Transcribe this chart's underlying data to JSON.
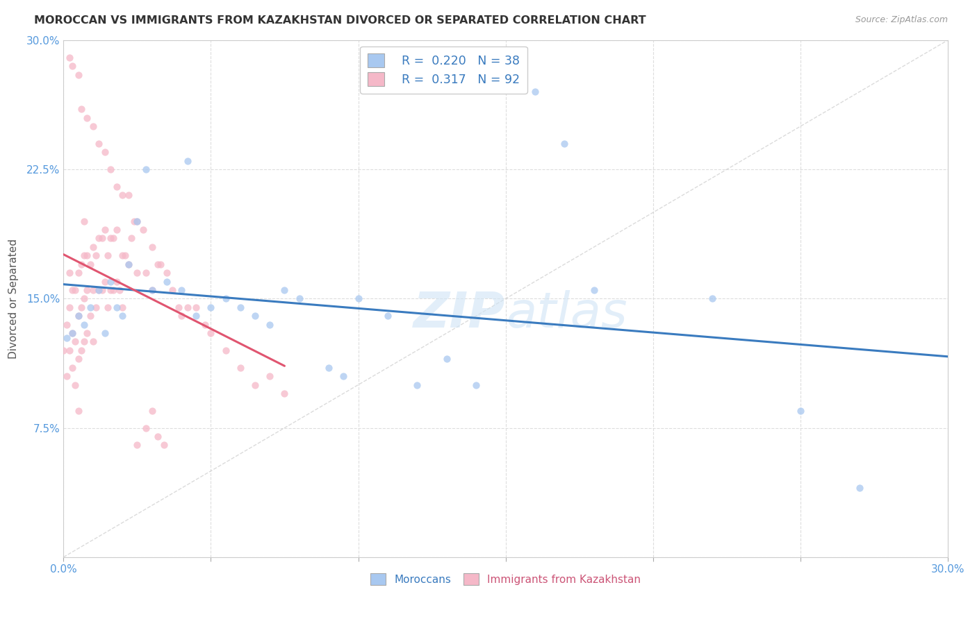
{
  "title": "MOROCCAN VS IMMIGRANTS FROM KAZAKHSTAN DIVORCED OR SEPARATED CORRELATION CHART",
  "source": "Source: ZipAtlas.com",
  "ylabel": "Divorced or Separated",
  "xlim": [
    0.0,
    0.3
  ],
  "ylim": [
    0.0,
    0.3
  ],
  "color_moroccan": "#a8c8f0",
  "color_kazakhstan": "#f5b8c8",
  "color_line_moroccan": "#3a7bbf",
  "color_line_kazakhstan": "#e05570",
  "color_diagonal": "#cccccc",
  "watermark": "ZIPatlas",
  "watermark_color": "#c8d8f0",
  "moroccan_x": [
    0.001,
    0.003,
    0.005,
    0.007,
    0.009,
    0.012,
    0.014,
    0.016,
    0.018,
    0.02,
    0.022,
    0.025,
    0.028,
    0.03,
    0.035,
    0.04,
    0.045,
    0.05,
    0.055,
    0.06,
    0.065,
    0.07,
    0.08,
    0.09,
    0.095,
    0.1,
    0.11,
    0.12,
    0.14,
    0.16,
    0.17,
    0.18,
    0.22,
    0.25,
    0.27,
    0.13,
    0.075,
    0.042
  ],
  "moroccan_y": [
    0.127,
    0.13,
    0.14,
    0.135,
    0.145,
    0.155,
    0.13,
    0.16,
    0.145,
    0.14,
    0.17,
    0.195,
    0.225,
    0.155,
    0.16,
    0.155,
    0.14,
    0.145,
    0.15,
    0.145,
    0.14,
    0.135,
    0.15,
    0.11,
    0.105,
    0.15,
    0.14,
    0.1,
    0.1,
    0.27,
    0.24,
    0.155,
    0.15,
    0.085,
    0.04,
    0.115,
    0.155,
    0.23
  ],
  "kaz_x": [
    0.0,
    0.001,
    0.001,
    0.002,
    0.002,
    0.002,
    0.003,
    0.003,
    0.003,
    0.004,
    0.004,
    0.004,
    0.005,
    0.005,
    0.005,
    0.005,
    0.006,
    0.006,
    0.006,
    0.007,
    0.007,
    0.007,
    0.007,
    0.008,
    0.008,
    0.008,
    0.009,
    0.009,
    0.01,
    0.01,
    0.01,
    0.011,
    0.011,
    0.012,
    0.012,
    0.013,
    0.013,
    0.014,
    0.014,
    0.015,
    0.015,
    0.016,
    0.016,
    0.017,
    0.017,
    0.018,
    0.018,
    0.019,
    0.02,
    0.02,
    0.021,
    0.022,
    0.023,
    0.024,
    0.025,
    0.025,
    0.027,
    0.028,
    0.03,
    0.03,
    0.032,
    0.033,
    0.035,
    0.037,
    0.039,
    0.04,
    0.042,
    0.045,
    0.048,
    0.05,
    0.055,
    0.06,
    0.065,
    0.07,
    0.075,
    0.005,
    0.003,
    0.002,
    0.006,
    0.008,
    0.01,
    0.012,
    0.014,
    0.016,
    0.018,
    0.02,
    0.022,
    0.025,
    0.028,
    0.03,
    0.032,
    0.034
  ],
  "kaz_y": [
    0.12,
    0.105,
    0.135,
    0.12,
    0.145,
    0.165,
    0.11,
    0.13,
    0.155,
    0.1,
    0.125,
    0.155,
    0.085,
    0.115,
    0.14,
    0.165,
    0.12,
    0.145,
    0.17,
    0.125,
    0.15,
    0.175,
    0.195,
    0.13,
    0.155,
    0.175,
    0.14,
    0.17,
    0.125,
    0.155,
    0.18,
    0.145,
    0.175,
    0.155,
    0.185,
    0.155,
    0.185,
    0.16,
    0.19,
    0.145,
    0.175,
    0.155,
    0.185,
    0.155,
    0.185,
    0.16,
    0.19,
    0.155,
    0.145,
    0.175,
    0.175,
    0.17,
    0.185,
    0.195,
    0.165,
    0.195,
    0.19,
    0.165,
    0.155,
    0.18,
    0.17,
    0.17,
    0.165,
    0.155,
    0.145,
    0.14,
    0.145,
    0.145,
    0.135,
    0.13,
    0.12,
    0.11,
    0.1,
    0.105,
    0.095,
    0.28,
    0.285,
    0.29,
    0.26,
    0.255,
    0.25,
    0.24,
    0.235,
    0.225,
    0.215,
    0.21,
    0.21,
    0.065,
    0.075,
    0.085,
    0.07,
    0.065
  ]
}
